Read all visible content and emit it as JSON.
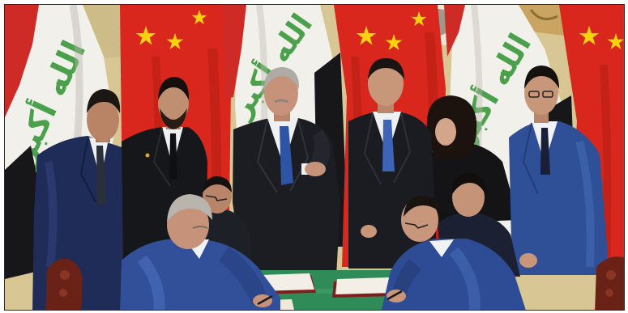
{
  "flags": {
    "iraq_emblem_text": "الله أكبر"
  },
  "colors": {
    "wall_gold": "#d8c795",
    "china_red": "#d9271d",
    "china_star": "#f7d20d",
    "iraq_red": "#cf2b26",
    "iraq_white": "#f2f0eb",
    "iraq_green": "#3d9a3f",
    "iraq_black": "#17171a",
    "table_green": "#2f8b57",
    "chair_wood": "#6b2216"
  }
}
